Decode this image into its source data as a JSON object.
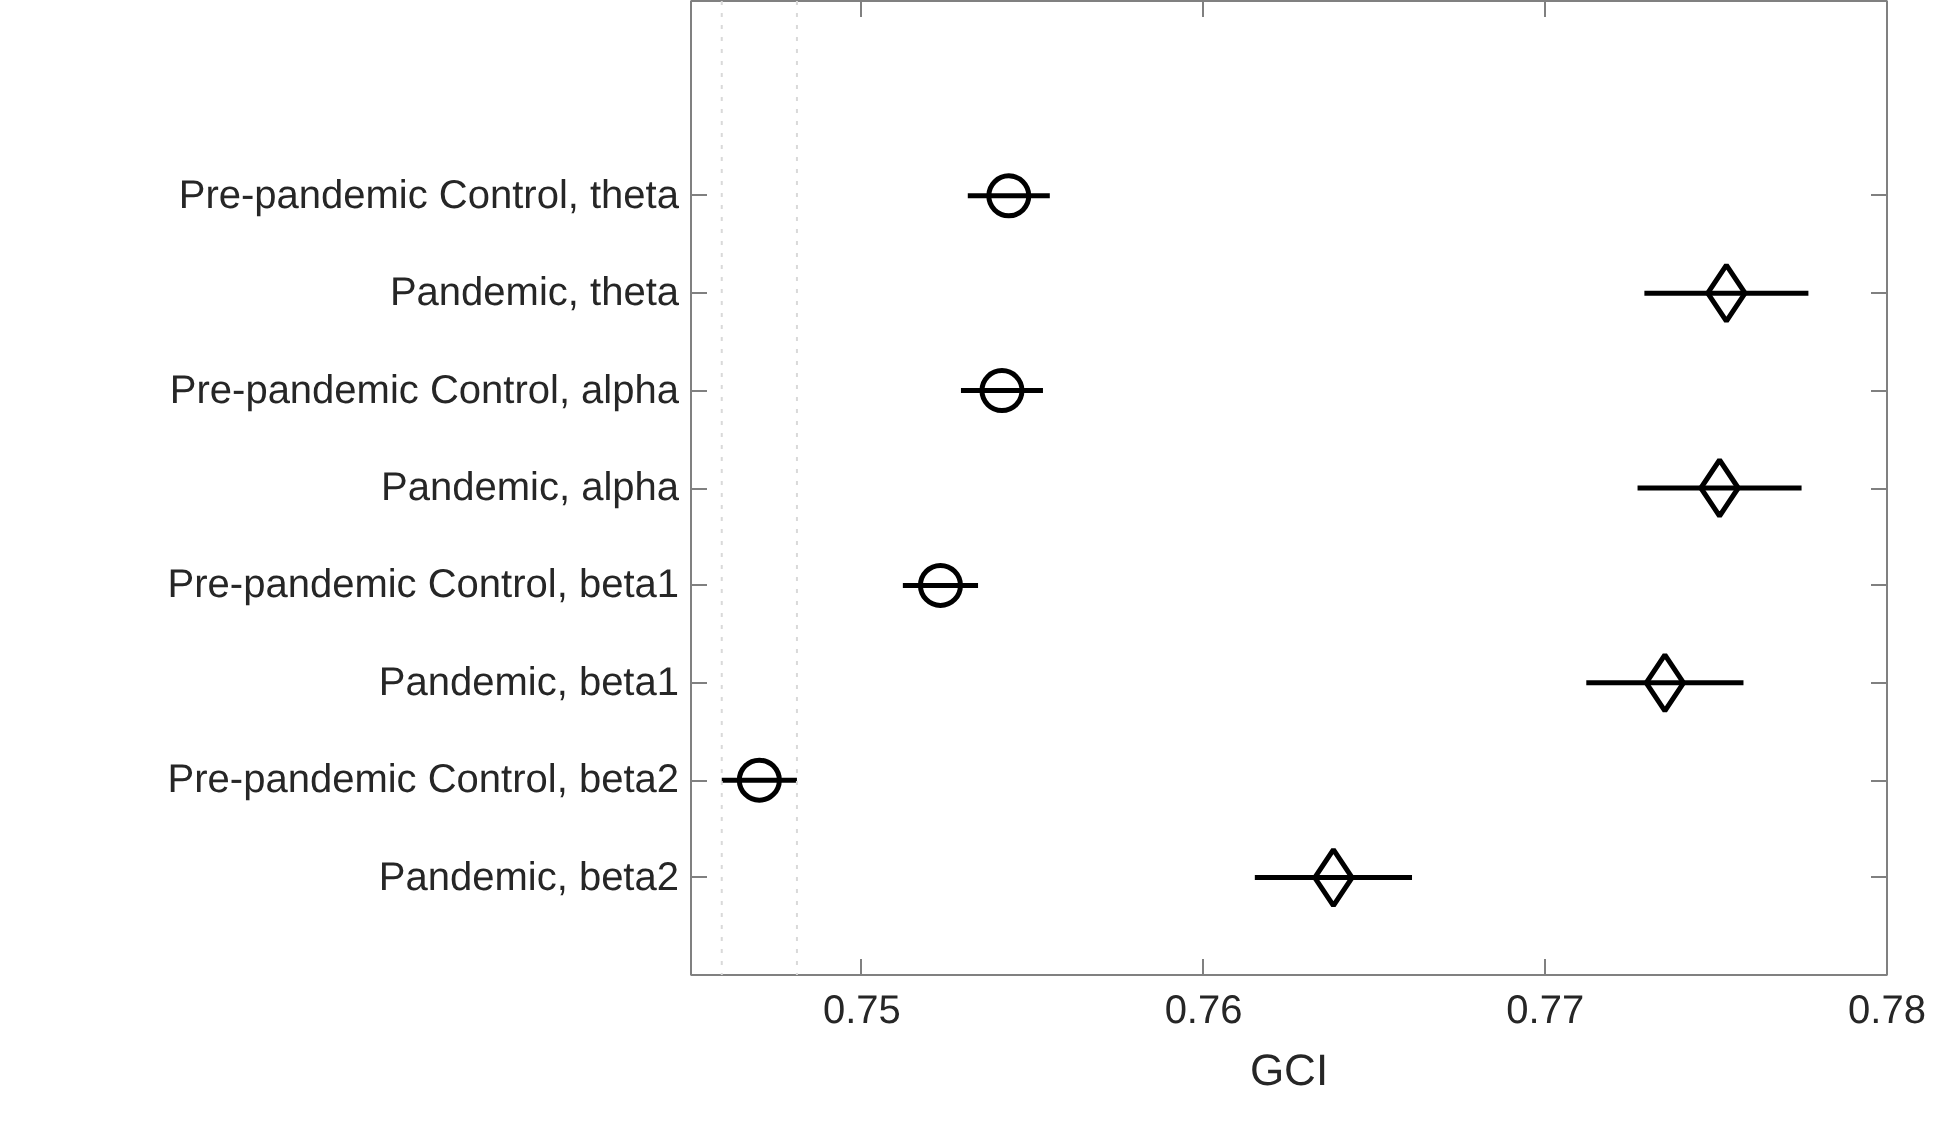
{
  "chart_data": {
    "type": "scatter",
    "orientation": "horizontal",
    "xlabel": "GCI",
    "categories": [
      "Pre-pandemic Control, theta",
      "Pandemic, theta",
      "Pre-pandemic Control, alpha",
      "Pandemic, alpha",
      "Pre-pandemic Control, beta1",
      "Pandemic, beta1",
      "Pre-pandemic Control, beta2",
      "Pandemic, beta2"
    ],
    "series": [
      {
        "color": "#000000",
        "marker": "circle",
        "values": [
          0.7543,
          null,
          0.7541,
          null,
          0.7523,
          null,
          0.747,
          null
        ],
        "errors": [
          0.0012,
          null,
          0.0012,
          null,
          0.0011,
          null,
          0.0011,
          null
        ]
      },
      {
        "color": "#000000",
        "marker": "diamond",
        "values": [
          null,
          0.7753,
          null,
          0.7751,
          null,
          0.7735,
          null,
          0.7638
        ],
        "errors": [
          null,
          0.0024,
          null,
          0.0024,
          null,
          0.0023,
          null,
          0.0023
        ]
      }
    ],
    "xlim": [
      0.745,
      0.78
    ],
    "xticks": [
      0.75,
      0.76,
      0.77,
      0.78
    ],
    "grid": false,
    "ref_lines": [
      {
        "axis": "x",
        "value": 0.7459,
        "label": null,
        "color": "#d9d9d9",
        "line_style": "dotted"
      },
      {
        "axis": "x",
        "value": 0.7481,
        "label": null,
        "color": "#d9d9d9",
        "line_style": "dotted"
      }
    ]
  }
}
